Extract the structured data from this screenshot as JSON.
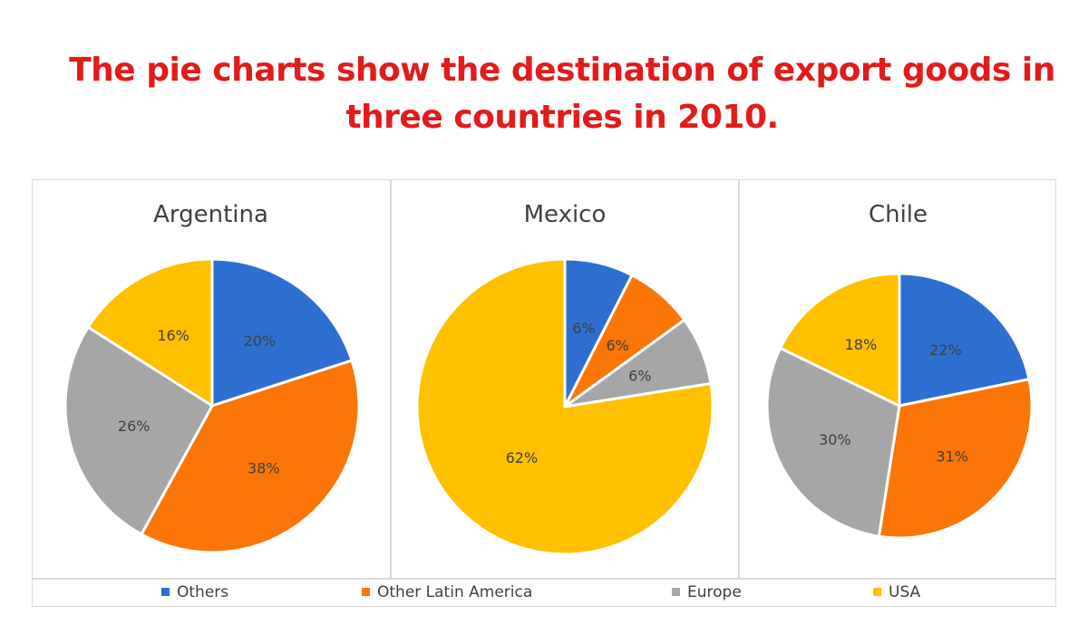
{
  "headline": {
    "line1": "The pie charts show the destination of export goods in",
    "line2": "three countries in 2010."
  },
  "colors": {
    "Others": "#2e6fd2",
    "Other Latin America": "#fb7507",
    "Europe": "#a6a6a6",
    "USA": "#ffc000",
    "headline": "#e21b1b"
  },
  "chart_data": [
    {
      "type": "pie",
      "title": "Argentina",
      "labels": [
        "Others",
        "Other Latin America",
        "Europe",
        "USA"
      ],
      "values": [
        20,
        38,
        26,
        16
      ],
      "value_labels": [
        "20%",
        "38%",
        "26%",
        "16%"
      ]
    },
    {
      "type": "pie",
      "title": "Mexico",
      "labels": [
        "Others",
        "Other Latin America",
        "Europe",
        "USA"
      ],
      "values": [
        6,
        6,
        6,
        62
      ],
      "value_labels": [
        "6%",
        "6%",
        "6%",
        "62%"
      ]
    },
    {
      "type": "pie",
      "title": "Chile",
      "labels": [
        "Others",
        "Other Latin America",
        "Europe",
        "USA"
      ],
      "values": [
        22,
        31,
        30,
        18
      ],
      "value_labels": [
        "22%",
        "31%",
        "30%",
        "18%"
      ]
    }
  ],
  "legend": {
    "position": "bottom",
    "items": [
      "Others",
      "Other Latin America",
      "Europe",
      "USA"
    ]
  }
}
